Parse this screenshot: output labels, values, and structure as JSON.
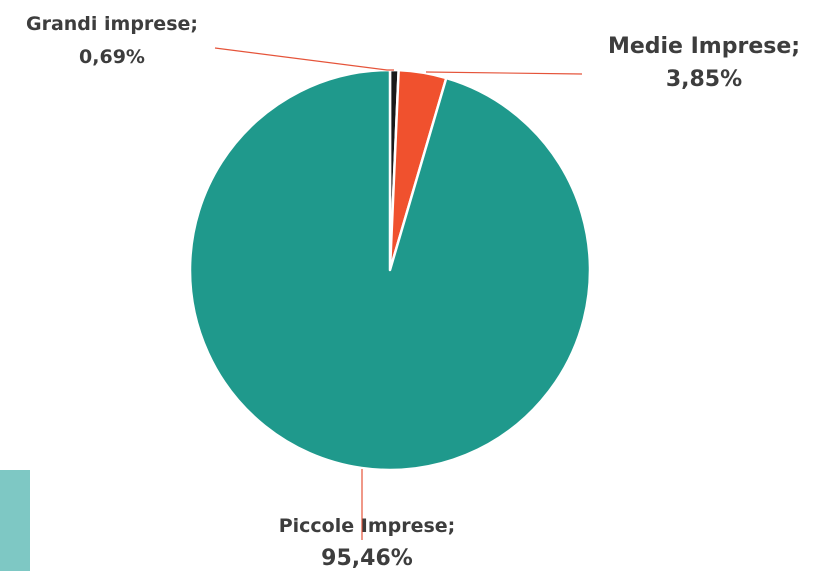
{
  "chart_data": {
    "type": "pie",
    "title": "",
    "slices": [
      {
        "name": "Grandi imprese",
        "label": "Grandi imprese;",
        "value": 0.69,
        "value_label": "0,69%",
        "color": "#1a1a1a"
      },
      {
        "name": "Medie Imprese",
        "label": "Medie Imprese;",
        "value": 3.85,
        "value_label": "3,85%",
        "color": "#f0512e"
      },
      {
        "name": "Piccole Imprese",
        "label": "Piccole Imprese;",
        "value": 95.46,
        "value_label": "95,46%",
        "color": "#1f998c"
      }
    ],
    "leader_line_color": "#e5543a",
    "legend": "none"
  },
  "decor": {
    "side_bar_color": "#7ec8c4"
  }
}
